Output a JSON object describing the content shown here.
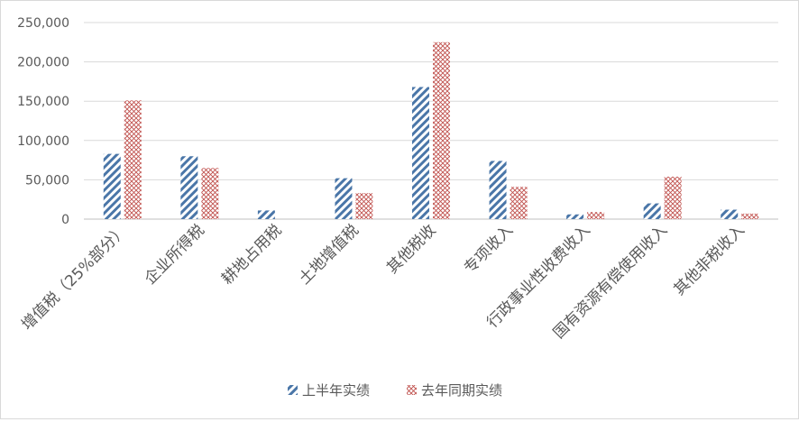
{
  "chart_data": {
    "type": "bar",
    "title": "",
    "xlabel": "",
    "ylabel": "",
    "ylim": [
      0,
      250000
    ],
    "yticks": [
      0,
      50000,
      100000,
      150000,
      200000,
      250000
    ],
    "ytick_labels": [
      "0",
      "50,000",
      "100,000",
      "150,000",
      "200,000",
      "250,000"
    ],
    "grid": true,
    "legend_position": "bottom",
    "categories": [
      "增值税（25%部分）",
      "企业所得税",
      "耕地占用税",
      "土地增值税",
      "其他税收",
      "专项收入",
      "行政事业性收费收入",
      "国有资源有偿使用收入",
      "其他非税收入"
    ],
    "series": [
      {
        "name": "上半年实绩",
        "values": [
          83000,
          80000,
          11000,
          52000,
          168000,
          74000,
          6000,
          20000,
          12000
        ],
        "color": "#4a76a8",
        "pattern": "diagonal-stripes"
      },
      {
        "name": "去年同期实绩",
        "values": [
          151000,
          65000,
          0,
          33000,
          225000,
          41000,
          9000,
          54000,
          7000
        ],
        "color": "#c0504d",
        "pattern": "crosshatch"
      }
    ]
  }
}
